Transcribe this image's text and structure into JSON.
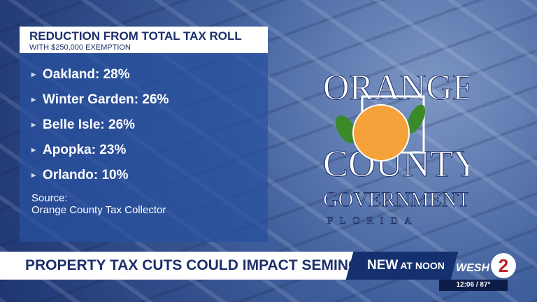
{
  "header": {
    "title": "REDUCTION FROM TOTAL TAX ROLL",
    "subtitle": "WITH $250,000 EXEMPTION"
  },
  "items": [
    "Oakland: 28%",
    "Winter Garden: 26%",
    "Belle Isle: 26%",
    "Apopka: 23%",
    "Orlando: 10%"
  ],
  "source": {
    "label": "Source:",
    "text": "Orange County Tax Collector"
  },
  "logo": {
    "line1": "ORANGE",
    "line2": "COUNTY",
    "line3": "GOVERNMENT",
    "line4": "FLORIDA"
  },
  "lower_third": {
    "headline": "PROPERTY TAX CUTS COULD IMPACT SEMINOLE COUNTY",
    "tag_new": "NEW",
    "tag_noon": "AT NOON",
    "station": "WESH",
    "channel": "2",
    "time_temp": "12:06 / 87°"
  }
}
